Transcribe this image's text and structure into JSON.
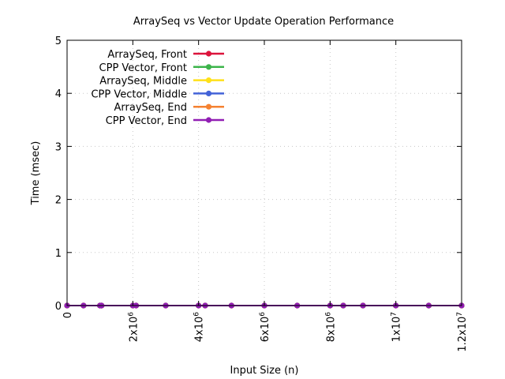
{
  "chart_data": {
    "type": "line",
    "title": "ArraySeq vs Vector Update Operation Performance",
    "xlabel": "Input Size (n)",
    "ylabel": "Time (msec)",
    "xlim": [
      0,
      12000000
    ],
    "ylim": [
      0,
      5
    ],
    "grid": true,
    "legend_position": "top-left",
    "x_ticks": [
      {
        "value": 0,
        "base": "0",
        "exp": ""
      },
      {
        "value": 2000000,
        "base": "2x10",
        "exp": "6"
      },
      {
        "value": 4000000,
        "base": "4x10",
        "exp": "6"
      },
      {
        "value": 6000000,
        "base": "6x10",
        "exp": "6"
      },
      {
        "value": 8000000,
        "base": "8x10",
        "exp": "6"
      },
      {
        "value": 10000000,
        "base": "1x10",
        "exp": "7"
      },
      {
        "value": 12000000,
        "base": "1.2x10",
        "exp": "7"
      }
    ],
    "y_ticks": [
      0,
      1,
      2,
      3,
      4,
      5
    ],
    "x": [
      0,
      500000,
      1000000,
      1050000,
      2000000,
      2100000,
      3000000,
      4000000,
      4200000,
      5000000,
      6000000,
      7000000,
      8000000,
      8400000,
      9000000,
      10000000,
      11000000,
      12000000
    ],
    "series": [
      {
        "name": "ArraySeq, Front",
        "color": "#dc143c",
        "values": [
          0,
          0,
          0,
          0,
          0,
          0,
          0,
          0,
          0,
          0,
          0,
          0,
          0,
          0,
          0,
          0,
          0,
          0
        ]
      },
      {
        "name": "CPP Vector, Front",
        "color": "#3cb44b",
        "values": [
          0,
          0,
          0,
          0,
          0,
          0,
          0,
          0,
          0,
          0,
          0,
          0,
          0,
          0,
          0,
          0,
          0,
          0
        ]
      },
      {
        "name": "ArraySeq, Middle",
        "color": "#ffe119",
        "values": [
          0,
          0,
          0,
          0,
          0,
          0,
          0,
          0,
          0,
          0,
          0,
          0,
          0,
          0,
          0,
          0,
          0,
          0
        ]
      },
      {
        "name": "CPP Vector, Middle",
        "color": "#4363d8",
        "values": [
          0,
          0,
          0,
          0,
          0,
          0,
          0,
          0,
          0,
          0,
          0,
          0,
          0,
          0,
          0,
          0,
          0,
          0
        ]
      },
      {
        "name": "ArraySeq, End",
        "color": "#f58231",
        "values": [
          0,
          0,
          0,
          0,
          0,
          0,
          0,
          0,
          0,
          0,
          0,
          0,
          0,
          0,
          0,
          0,
          0,
          0
        ]
      },
      {
        "name": "CPP Vector, End",
        "color": "#911eb4",
        "values": [
          0,
          0,
          0,
          0,
          0,
          0,
          0,
          0,
          0,
          0,
          0,
          0,
          0,
          0,
          0,
          0,
          0,
          0
        ]
      }
    ]
  }
}
